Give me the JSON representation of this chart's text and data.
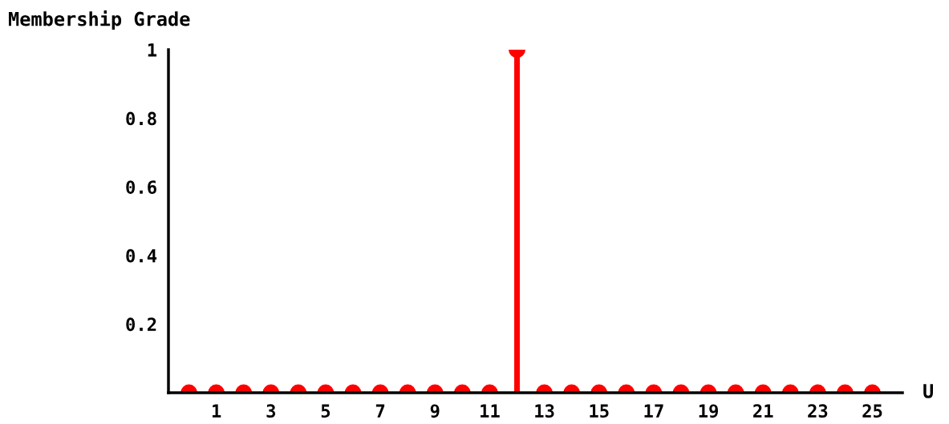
{
  "chart_data": {
    "type": "lollipop",
    "xlabel": "U",
    "ylabel": "Membership Grade",
    "x": [
      0,
      1,
      2,
      3,
      4,
      5,
      6,
      7,
      8,
      9,
      10,
      11,
      12,
      13,
      14,
      15,
      16,
      17,
      18,
      19,
      20,
      21,
      22,
      23,
      24,
      25
    ],
    "values": [
      0,
      0,
      0,
      0,
      0,
      0,
      0,
      0,
      0,
      0,
      0,
      0,
      1,
      0,
      0,
      0,
      0,
      0,
      0,
      0,
      0,
      0,
      0,
      0,
      0,
      0
    ],
    "color": "#ff0000",
    "marker": "circle",
    "grid": false,
    "legend": false,
    "xlim": [
      -0.75,
      26.1
    ],
    "ylim": [
      0,
      1
    ],
    "xticks": [
      1,
      3,
      5,
      7,
      9,
      11,
      13,
      15,
      17,
      19,
      21,
      23,
      25
    ],
    "yticks": [
      0.2,
      0.4,
      0.6,
      0.8,
      1
    ]
  }
}
